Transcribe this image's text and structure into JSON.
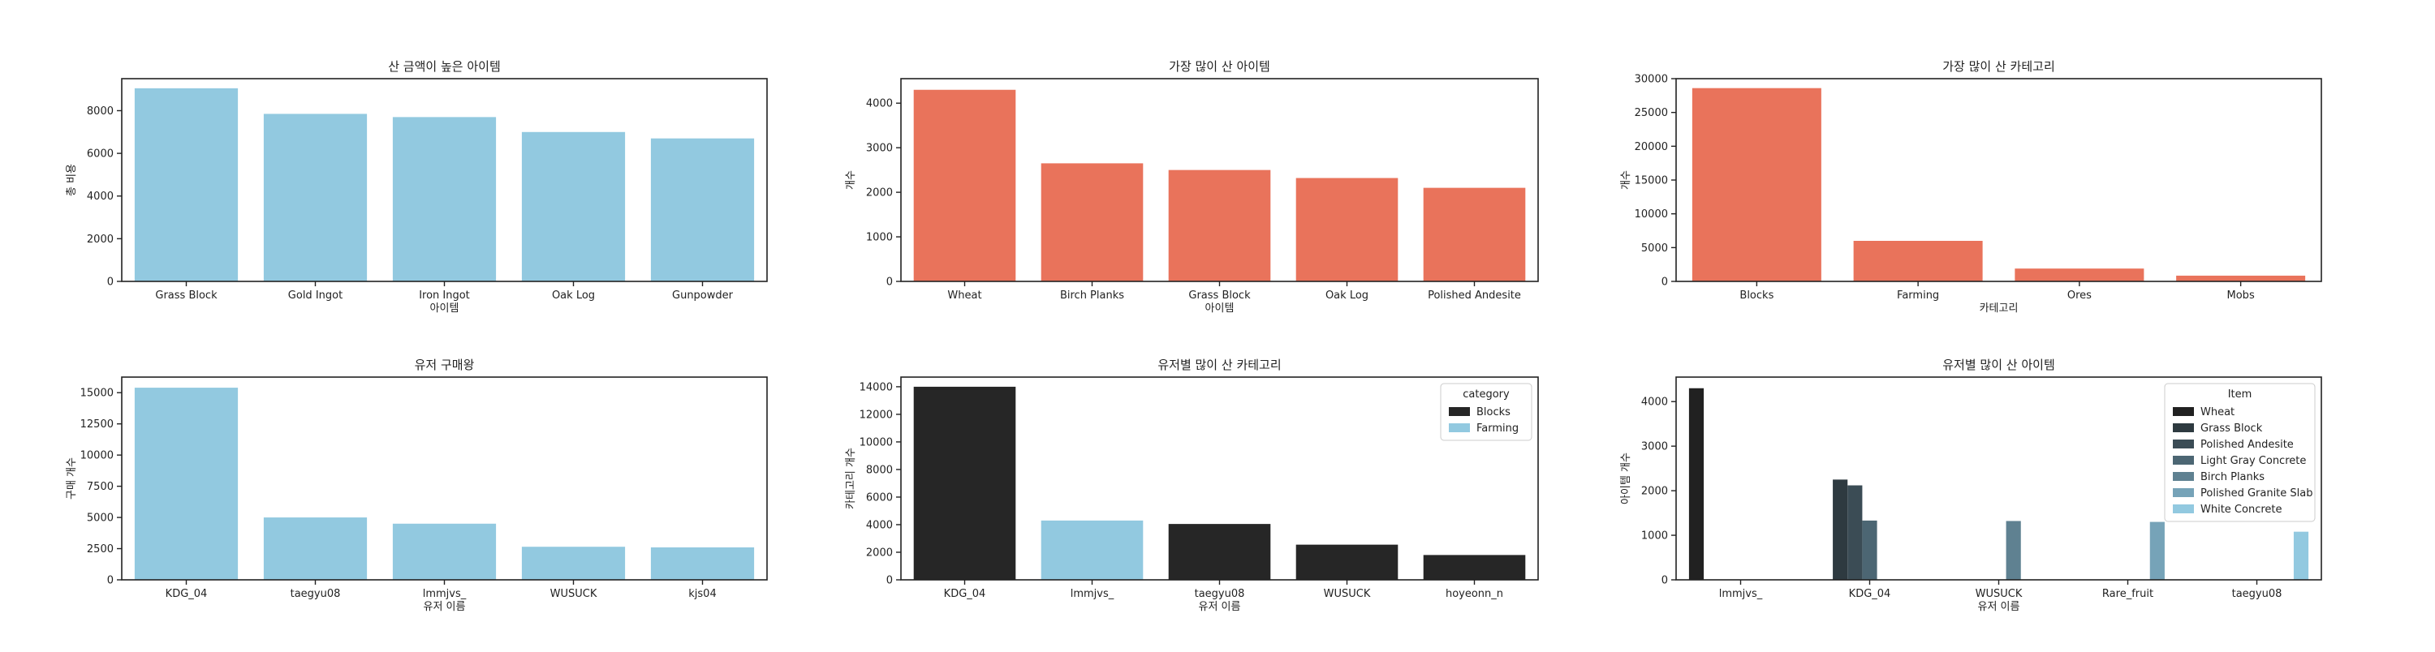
{
  "charts": [
    {
      "id": "c1",
      "title": "산 금액이 높은 아이템",
      "type": "bar",
      "xlabel": "아이템",
      "ylabel": "총 비용",
      "ylim": [
        0,
        9500
      ],
      "yticks": [
        0,
        2000,
        4000,
        6000,
        8000
      ],
      "categories": [
        "Grass Block",
        "Gold Ingot",
        "Iron Ingot",
        "Oak Log",
        "Gunpowder"
      ],
      "values": [
        9050,
        7850,
        7700,
        7000,
        6700
      ],
      "color": "#92c9e0"
    },
    {
      "id": "c2",
      "title": "가장 많이 산 아이템",
      "type": "bar",
      "xlabel": "아이템",
      "ylabel": "개수",
      "ylim": [
        0,
        4550
      ],
      "yticks": [
        0,
        1000,
        2000,
        3000,
        4000
      ],
      "categories": [
        "Wheat",
        "Birch Planks",
        "Grass Block",
        "Oak Log",
        "Polished Andesite"
      ],
      "values": [
        4300,
        2650,
        2500,
        2320,
        2100
      ],
      "color": "#e9735b"
    },
    {
      "id": "c3",
      "title": "가장 많이 산 카테고리",
      "type": "bar",
      "xlabel": "카테고리",
      "ylabel": "개수",
      "ylim": [
        0,
        30000
      ],
      "yticks": [
        0,
        5000,
        10000,
        15000,
        20000,
        25000,
        30000
      ],
      "categories": [
        "Blocks",
        "Farming",
        "Ores",
        "Mobs"
      ],
      "values": [
        28600,
        6000,
        1900,
        850
      ],
      "color": "#e9735b"
    },
    {
      "id": "c4",
      "title": "유저 구매왕",
      "type": "bar",
      "xlabel": "유저 이름",
      "ylabel": "구매 개수",
      "ylim": [
        0,
        16250
      ],
      "yticks": [
        0,
        2500,
        5000,
        7500,
        10000,
        12500,
        15000
      ],
      "categories": [
        "KDG_04",
        "taegyu08",
        "lmmjvs_",
        "WUSUCK",
        "kjs04"
      ],
      "values": [
        15400,
        5000,
        4500,
        2650,
        2600
      ],
      "color": "#92c9e0"
    },
    {
      "id": "c5",
      "title": "유저별 많이 산 카테고리",
      "type": "bar",
      "xlabel": "유저 이름",
      "ylabel": "카테고리 개수",
      "ylim": [
        0,
        14700
      ],
      "yticks": [
        0,
        2000,
        4000,
        6000,
        8000,
        10000,
        12000,
        14000
      ],
      "categories": [
        "KDG_04",
        "lmmjvs_",
        "taegyu08",
        "WUSUCK",
        "hoyeonn_n"
      ],
      "values": [
        14000,
        4300,
        4050,
        2550,
        1800
      ],
      "bar_series": [
        "Blocks",
        "Farming",
        "Blocks",
        "Blocks",
        "Blocks"
      ],
      "legend": {
        "title": "category",
        "position": "top-right",
        "entries": [
          {
            "name": "Blocks",
            "color": "#262626"
          },
          {
            "name": "Farming",
            "color": "#92c9e0"
          }
        ]
      }
    },
    {
      "id": "c6",
      "title": "유저별 많이 산 아이템",
      "type": "grouped-bar",
      "xlabel": "유저 이름",
      "ylabel": "아이템 개수",
      "ylim": [
        0,
        4550
      ],
      "yticks": [
        0,
        1000,
        2000,
        3000,
        4000
      ],
      "categories": [
        "lmmjvs_",
        "KDG_04",
        "WUSUCK",
        "Rare_fruit",
        "taegyu08"
      ],
      "series": [
        {
          "name": "Wheat",
          "color": "#212121",
          "values": [
            4300,
            0,
            0,
            0,
            0
          ]
        },
        {
          "name": "Grass Block",
          "color": "#2e3a40",
          "values": [
            0,
            2250,
            0,
            0,
            0
          ]
        },
        {
          "name": "Polished Andesite",
          "color": "#3b4c55",
          "values": [
            0,
            2120,
            0,
            0,
            0
          ]
        },
        {
          "name": "Light Gray Concrete",
          "color": "#4c6673",
          "values": [
            0,
            1330,
            0,
            0,
            0
          ]
        },
        {
          "name": "Birch Planks",
          "color": "#5f8191",
          "values": [
            0,
            0,
            1320,
            0,
            0
          ]
        },
        {
          "name": "Polished Granite Slab",
          "color": "#76a3b8",
          "values": [
            0,
            0,
            0,
            1300,
            0
          ]
        },
        {
          "name": "White Concrete",
          "color": "#92c9e0",
          "values": [
            0,
            0,
            0,
            0,
            1080
          ]
        }
      ],
      "legend": {
        "title": "Item",
        "position": "top-right"
      }
    }
  ]
}
